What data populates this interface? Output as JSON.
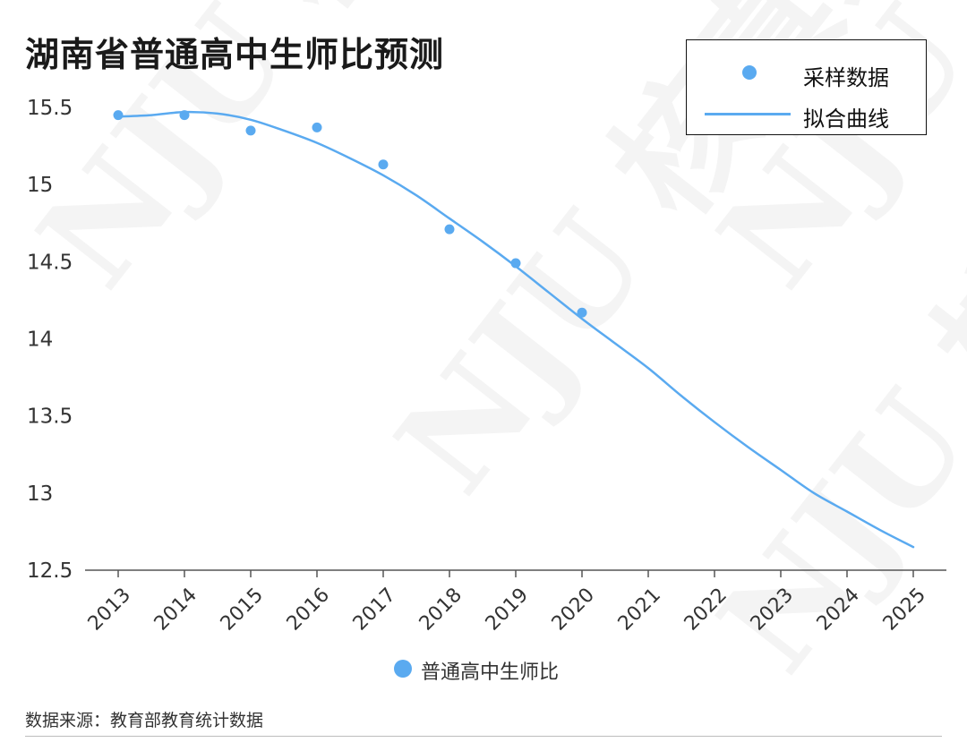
{
  "title": "湖南省普通高中生师比预测",
  "source": "数据来源：教育部教育统计数据",
  "watermark": "NJU 核真录",
  "colors": {
    "series": "#5AAAF0",
    "axis": "#555555",
    "text": "#333333"
  },
  "legend": {
    "points_label": "采样数据",
    "line_label": "拟合曲线",
    "series_label": "普通高中生师比"
  },
  "chart_data": {
    "type": "scatter",
    "title": "湖南省普通高中生师比预测",
    "categories": [
      "2013",
      "2014",
      "2015",
      "2016",
      "2017",
      "2018",
      "2019",
      "2020",
      "2021",
      "2022",
      "2023",
      "2024",
      "2025"
    ],
    "y_ticks": [
      "15.5",
      "15",
      "14.5",
      "14",
      "13.5",
      "13",
      "12.5"
    ],
    "ylim": [
      12.5,
      15.5
    ],
    "grid": false,
    "legend_position": "top-right",
    "series": [
      {
        "name": "采样数据",
        "kind": "scatter",
        "x": [
          2013,
          2014,
          2015,
          2016,
          2017,
          2018,
          2019,
          2020
        ],
        "values": [
          15.45,
          15.45,
          15.35,
          15.37,
          15.13,
          14.71,
          14.49,
          14.17
        ]
      },
      {
        "name": "拟合曲线",
        "kind": "line",
        "x": [
          2013,
          2013.5,
          2014,
          2014.5,
          2015,
          2015.5,
          2016,
          2016.5,
          2017,
          2017.5,
          2018,
          2018.5,
          2019,
          2019.5,
          2020,
          2020.5,
          2021,
          2021.5,
          2022,
          2022.5,
          2023,
          2023.5,
          2024,
          2024.5,
          2025
        ],
        "values": [
          15.44,
          15.45,
          15.47,
          15.46,
          15.42,
          15.35,
          15.27,
          15.17,
          15.06,
          14.93,
          14.78,
          14.63,
          14.47,
          14.3,
          14.13,
          13.97,
          13.81,
          13.63,
          13.46,
          13.3,
          13.15,
          13.0,
          12.88,
          12.76,
          12.65
        ]
      }
    ]
  }
}
